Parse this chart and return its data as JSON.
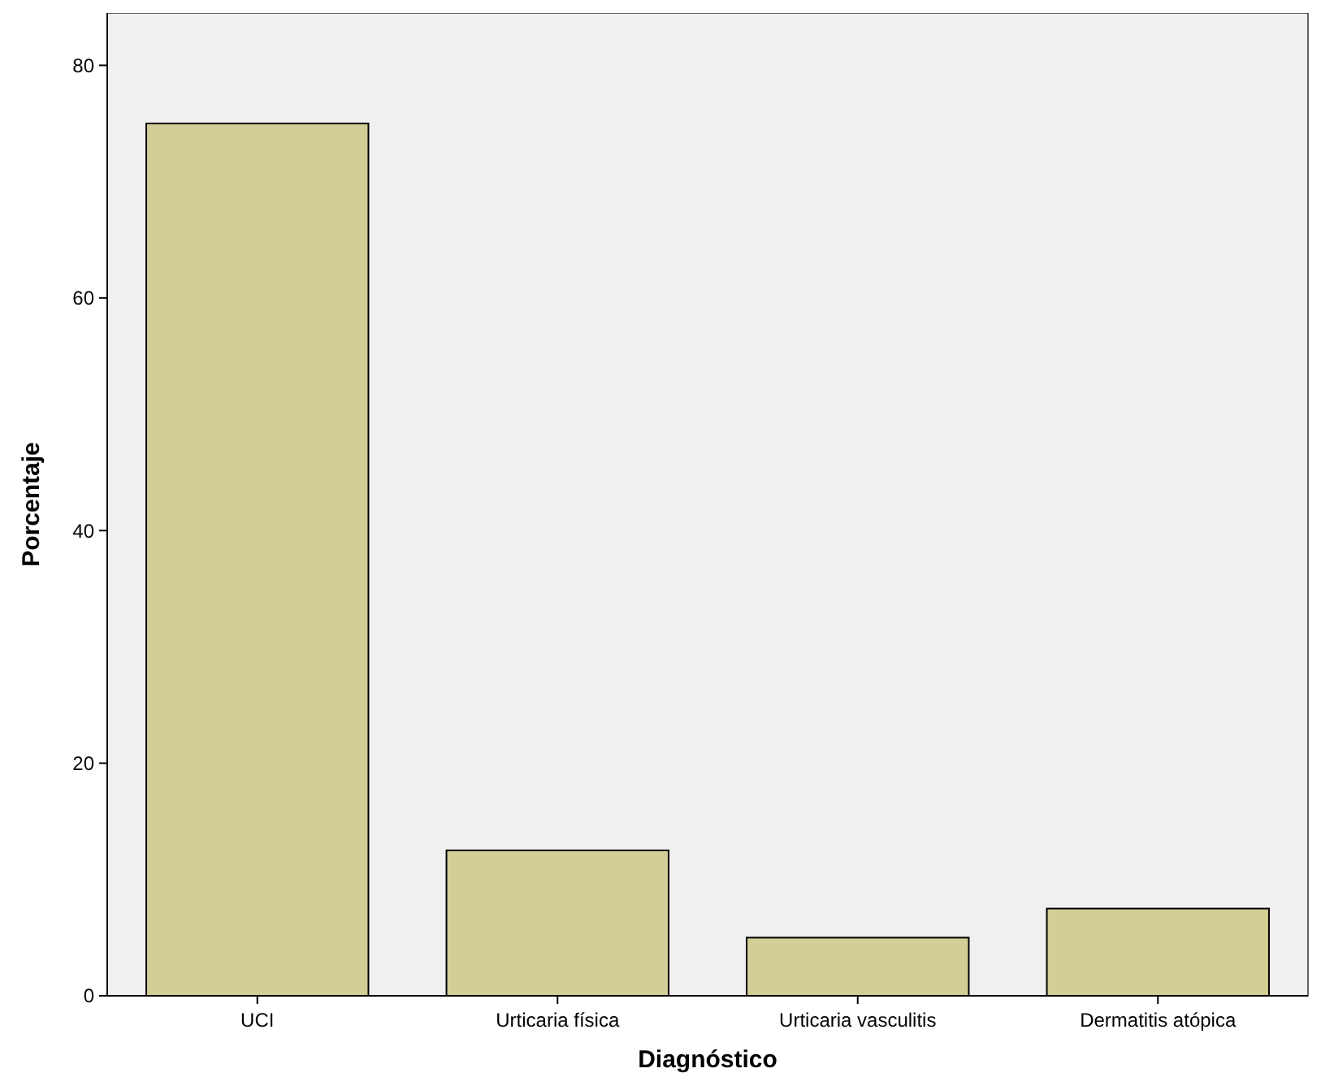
{
  "chart_data": {
    "type": "bar",
    "xlabel": "Diagnóstico",
    "ylabel": "Porcentaje",
    "categories": [
      "UCI",
      "Urticaria física",
      "Urticaria vasculitis",
      "Dermatitis atópica"
    ],
    "values": [
      75,
      12.5,
      5,
      7.5
    ],
    "color": "#d3ce96",
    "ylim": [
      0,
      84.5
    ],
    "yticks": [
      0,
      20,
      40,
      60,
      80
    ],
    "grid": false
  }
}
